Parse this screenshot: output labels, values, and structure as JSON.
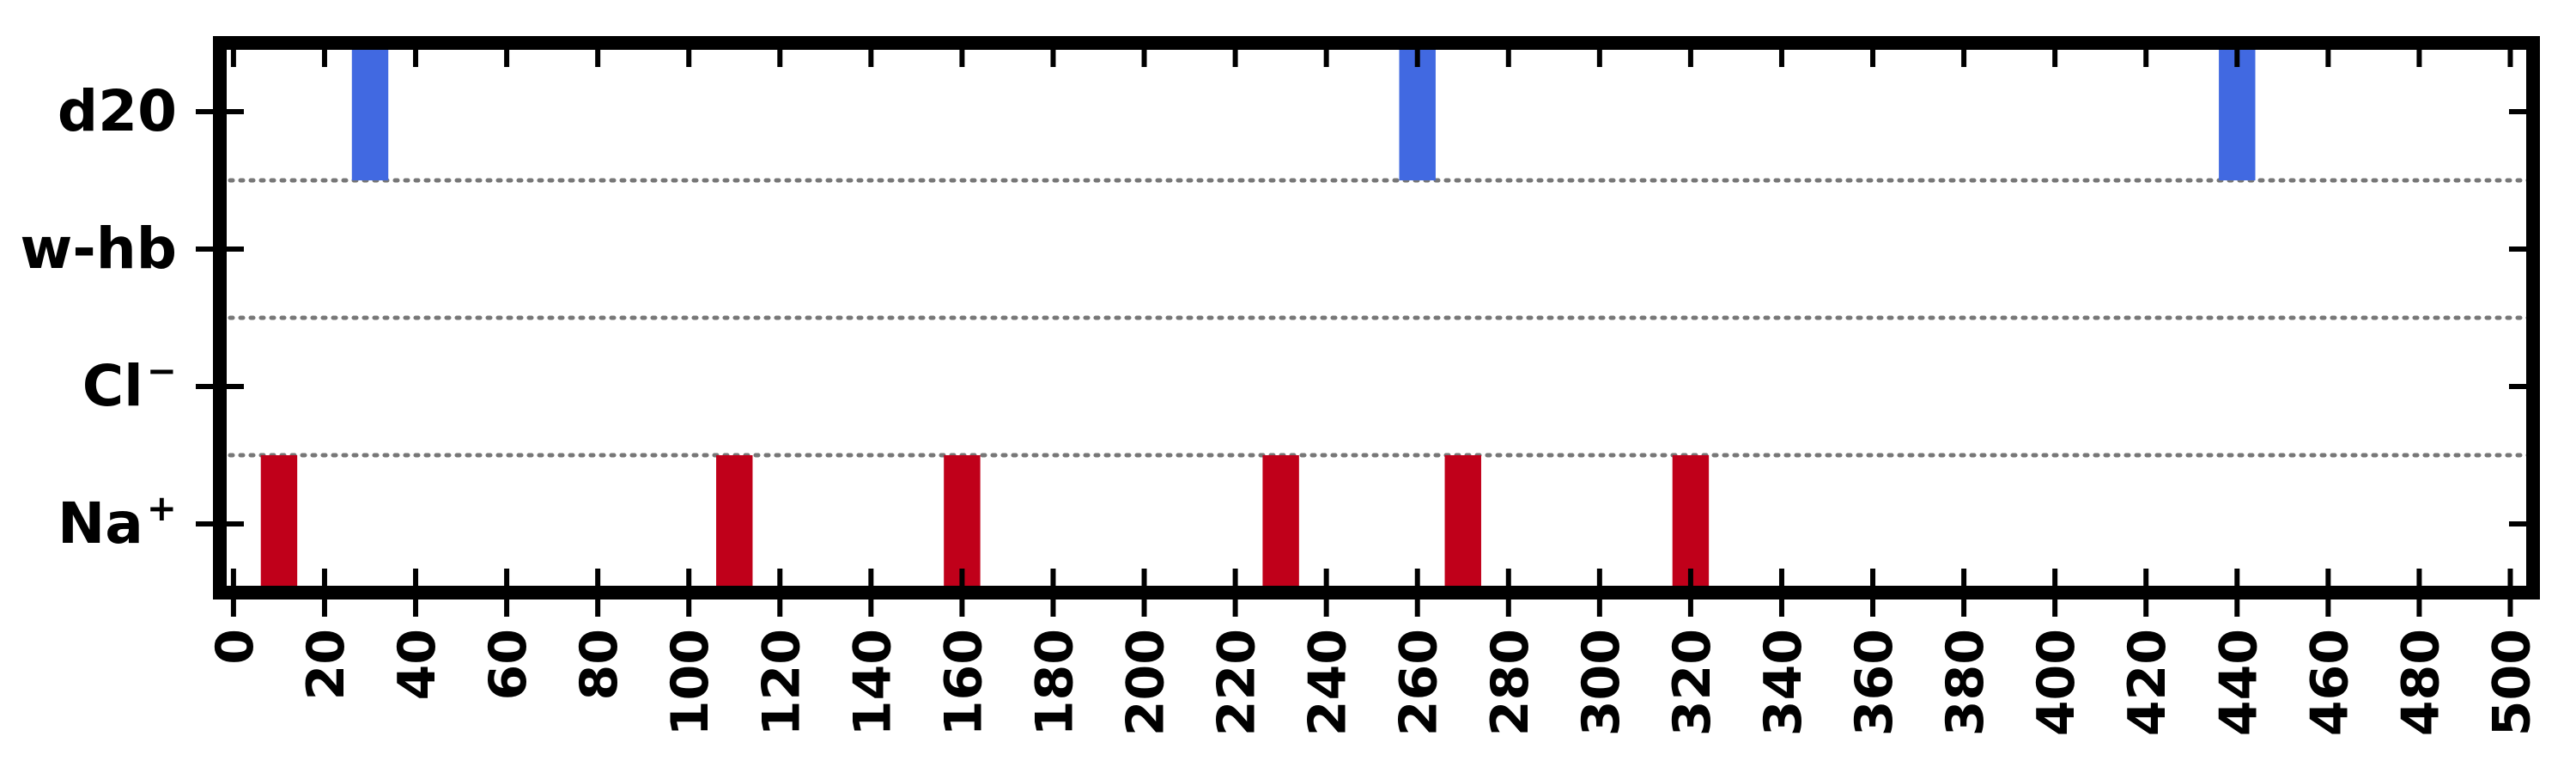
{
  "chart_data": {
    "type": "bar",
    "orientation": "horizontal-event-raster",
    "title": "",
    "xlabel": "",
    "ylabel": "",
    "xlim": [
      -3,
      505
    ],
    "x_ticks": [
      0,
      20,
      40,
      60,
      80,
      100,
      120,
      140,
      160,
      180,
      200,
      220,
      240,
      260,
      280,
      300,
      320,
      340,
      360,
      380,
      400,
      420,
      440,
      460,
      480,
      500
    ],
    "categories": [
      {
        "key": "d20",
        "base": "d20",
        "sup": ""
      },
      {
        "key": "w-hb",
        "base": "w-hb",
        "sup": ""
      },
      {
        "key": "Cl-",
        "base": "Cl",
        "sup": "−"
      },
      {
        "key": "Na+",
        "base": "Na",
        "sup": "+"
      }
    ],
    "series": [
      {
        "category": "d20",
        "color": "#4169e1",
        "x": [
          30,
          260,
          440
        ]
      },
      {
        "category": "w-hb",
        "color": "#4169e1",
        "x": []
      },
      {
        "category": "Cl-",
        "color": "#c0001a",
        "x": []
      },
      {
        "category": "Na+",
        "color": "#c0001a",
        "x": [
          10,
          110,
          160,
          230,
          270,
          320
        ]
      }
    ],
    "event_width": 8,
    "grid": false,
    "separator_style": "dotted",
    "legend": "none"
  }
}
